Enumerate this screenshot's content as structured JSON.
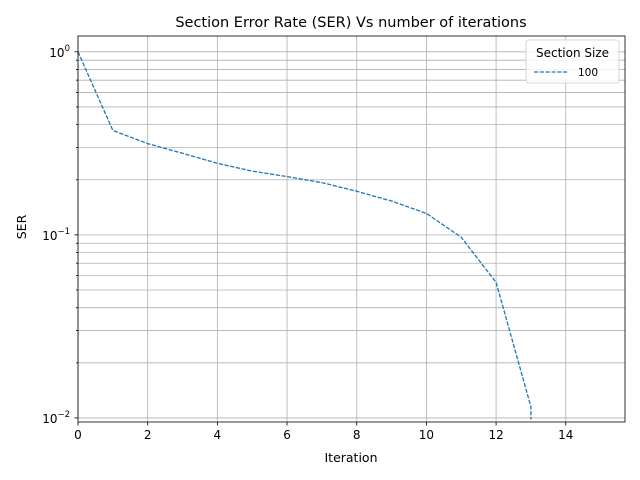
{
  "chart_data": {
    "type": "line",
    "title": "Section Error Rate (SER) Vs number of iterations",
    "xlabel": "Iteration",
    "ylabel": "SER",
    "xlim": [
      0,
      15.7
    ],
    "ylim": [
      0.0095,
      1.22
    ],
    "yscale": "log",
    "grid": true,
    "x_ticks": [
      0,
      2,
      4,
      6,
      8,
      10,
      12,
      14
    ],
    "x_tick_labels": [
      "0",
      "2",
      "4",
      "6",
      "8",
      "10",
      "12",
      "14"
    ],
    "y_major_ticks": [
      {
        "value": 1,
        "base": "10",
        "exp": "0"
      },
      {
        "value": 0.1,
        "base": "10",
        "exp": "−1"
      },
      {
        "value": 0.01,
        "base": "10",
        "exp": "−2"
      }
    ],
    "legend": {
      "title": "Section Size",
      "placement": "upper right"
    },
    "series": [
      {
        "name": "100",
        "color": "#1f77b4",
        "line_style": "dashed",
        "x": [
          0,
          1,
          2,
          3,
          4,
          5,
          6,
          7,
          8,
          9,
          10,
          11,
          12,
          13,
          13
        ],
        "y": [
          1.0,
          0.372,
          0.315,
          0.279,
          0.246,
          0.223,
          0.208,
          0.193,
          0.173,
          0.153,
          0.131,
          0.097,
          0.055,
          0.0115,
          0.0098
        ]
      }
    ]
  }
}
